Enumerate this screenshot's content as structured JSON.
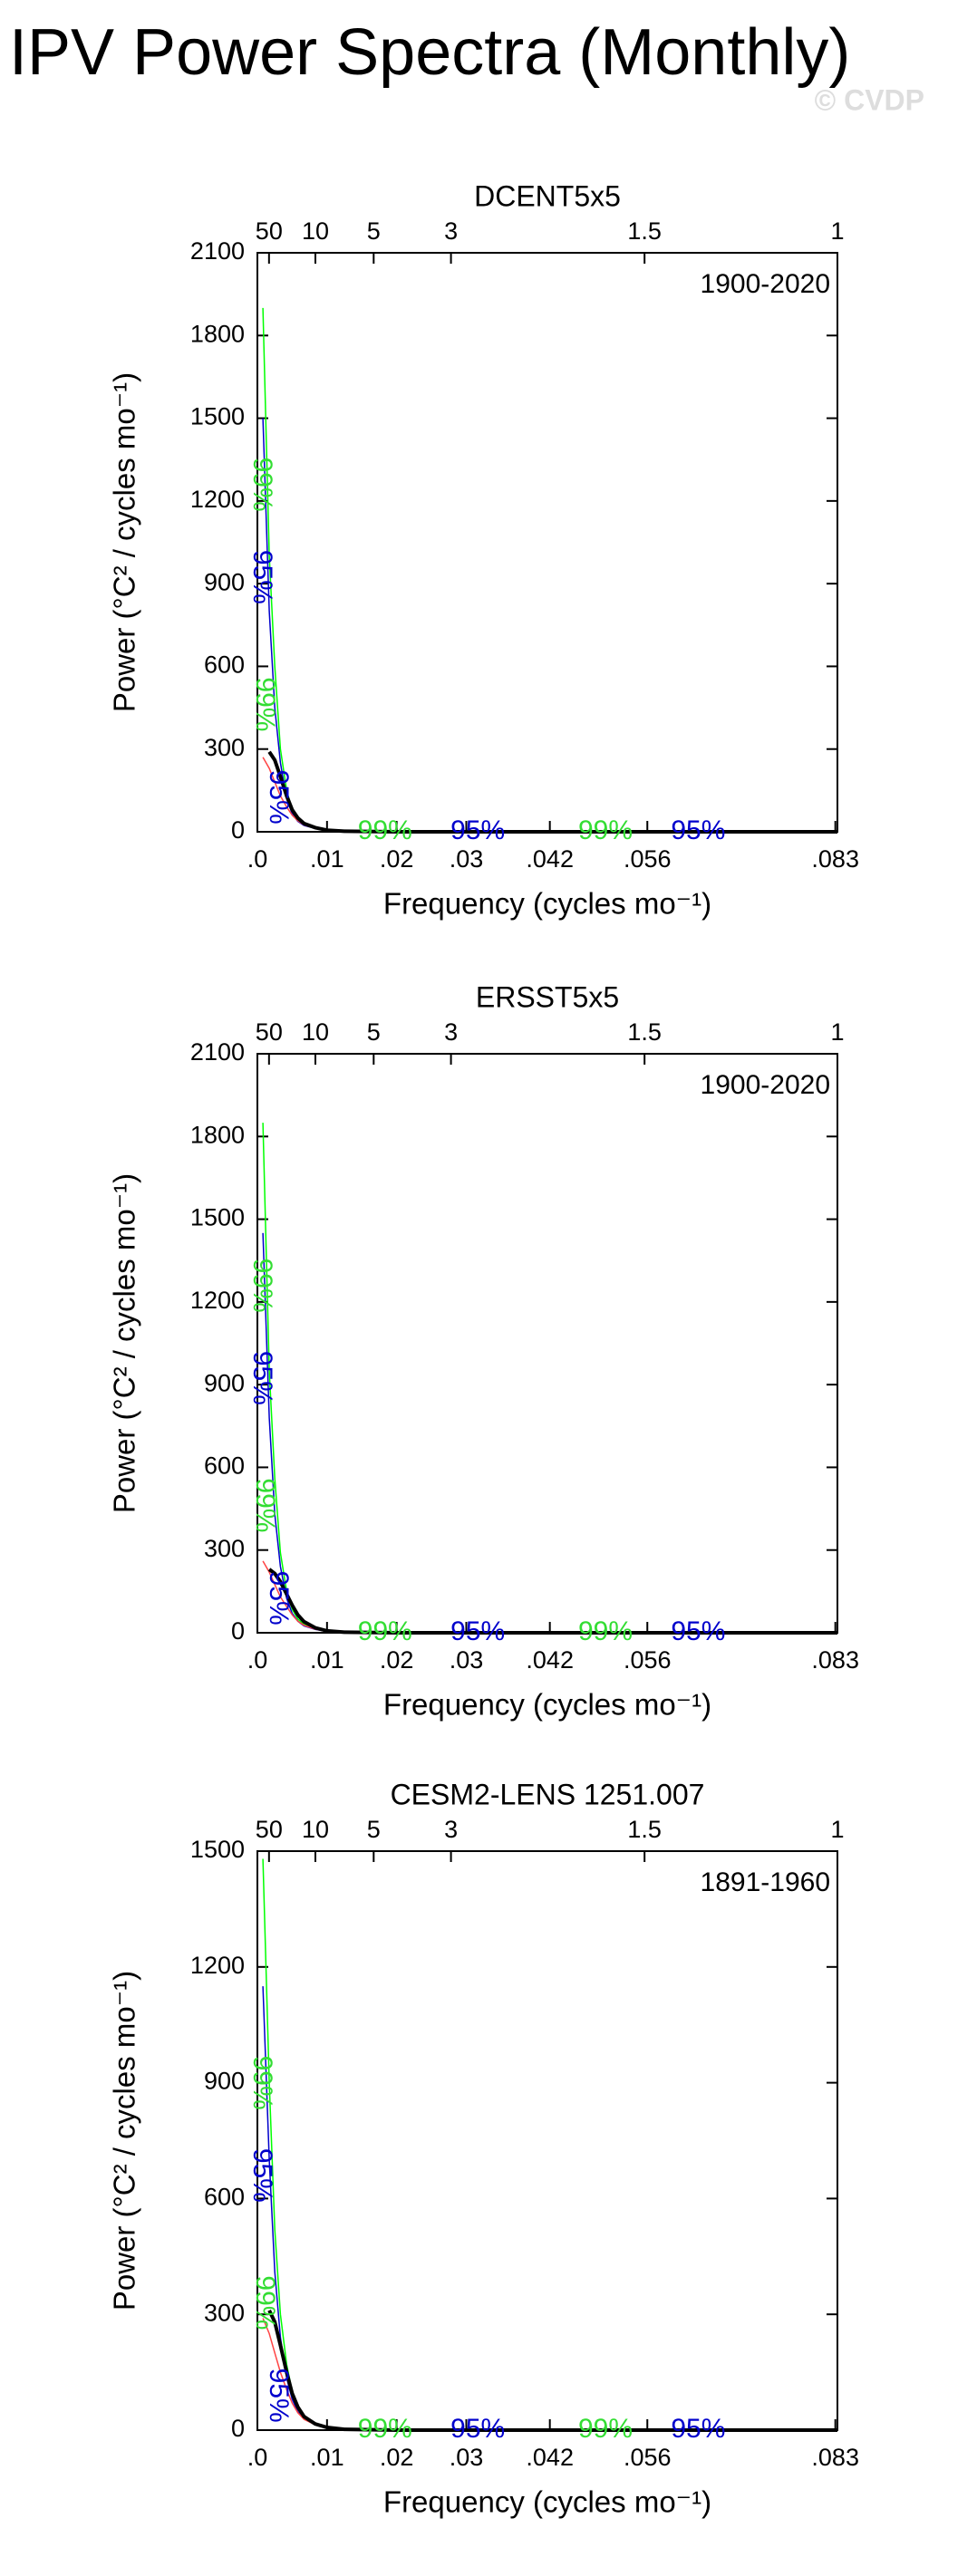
{
  "title": "IPV Power Spectra (Monthly)",
  "watermark": "© CVDP",
  "chart_data": [
    {
      "type": "line",
      "title": "DCENT5x5",
      "period": "1900-2020",
      "x_label": "Frequency (cycles mo⁻¹)",
      "y_label": "Power (°C² / cycles mo⁻¹)",
      "x": [
        0.0008,
        0.0017,
        0.0025,
        0.0033,
        0.0042,
        0.005,
        0.0058,
        0.0067,
        0.0083,
        0.01,
        0.0125,
        0.02,
        0.04,
        0.0833
      ],
      "series": [
        {
          "color": "#00ff00",
          "values": [
            1900,
            1000,
            600,
            300,
            150,
            80,
            45,
            28,
            14,
            6,
            2,
            0,
            0,
            0
          ]
        },
        {
          "color": "#0000cc",
          "values": [
            1500,
            800,
            450,
            250,
            120,
            65,
            38,
            23,
            12,
            5,
            2,
            0,
            0,
            0
          ]
        },
        {
          "color": "#ff4444",
          "values": [
            270,
            230,
            180,
            130,
            90,
            60,
            40,
            25,
            12,
            5,
            2,
            0,
            0,
            0
          ]
        },
        {
          "color": "#000000",
          "values": [
            null,
            290,
            260,
            200,
            130,
            80,
            50,
            30,
            15,
            6,
            2,
            0,
            0,
            0
          ]
        }
      ],
      "annotations": [
        {
          "text": "99%",
          "color": "#33dd33"
        },
        {
          "text": "95%",
          "color": "#0000cc"
        },
        {
          "text": "99%",
          "color": "#33dd33"
        },
        {
          "text": "95%",
          "color": "#0000cc"
        },
        {
          "text": "99%",
          "color": "#33dd33"
        },
        {
          "text": "95%",
          "color": "#0000cc"
        },
        {
          "text": "99%",
          "color": "#33dd33"
        },
        {
          "text": "95%",
          "color": "#0000cc"
        }
      ],
      "xlim": [
        0,
        0.0833
      ],
      "ylim": [
        0,
        2100
      ],
      "xticks": [
        {
          "value": 0,
          "label": ".0"
        },
        {
          "value": 0.01,
          "label": ".01"
        },
        {
          "value": 0.02,
          "label": ".02"
        },
        {
          "value": 0.03,
          "label": ".03"
        },
        {
          "value": 0.042,
          "label": ".042"
        },
        {
          "value": 0.056,
          "label": ".056"
        },
        {
          "value": 0.083,
          "label": ".083"
        }
      ],
      "x2ticks": [
        {
          "value": 0.00167,
          "label": "50"
        },
        {
          "value": 0.00833,
          "label": "10"
        },
        {
          "value": 0.0167,
          "label": "5"
        },
        {
          "value": 0.0278,
          "label": "3"
        },
        {
          "value": 0.0556,
          "label": "1.5"
        },
        {
          "value": 0.0833,
          "label": "1"
        }
      ],
      "yticks": [
        0,
        300,
        600,
        900,
        1200,
        1500,
        1800,
        2100
      ]
    },
    {
      "type": "line",
      "title": "ERSST5x5",
      "period": "1900-2020",
      "x_label": "Frequency (cycles mo⁻¹)",
      "y_label": "Power (°C² / cycles mo⁻¹)",
      "x": [
        0.0008,
        0.0017,
        0.0025,
        0.0033,
        0.0042,
        0.005,
        0.0058,
        0.0067,
        0.0083,
        0.01,
        0.0125,
        0.02,
        0.04,
        0.0833
      ],
      "series": [
        {
          "color": "#00ff00",
          "values": [
            1850,
            950,
            560,
            290,
            150,
            85,
            50,
            30,
            15,
            6,
            2,
            0,
            0,
            0
          ]
        },
        {
          "color": "#0000cc",
          "values": [
            1450,
            780,
            430,
            240,
            125,
            70,
            42,
            25,
            12,
            5,
            2,
            0,
            0,
            0
          ]
        },
        {
          "color": "#ff4444",
          "values": [
            260,
            220,
            175,
            130,
            95,
            65,
            42,
            27,
            13,
            5,
            2,
            0,
            0,
            0
          ]
        },
        {
          "color": "#000000",
          "values": [
            null,
            230,
            215,
            185,
            140,
            100,
            65,
            40,
            18,
            7,
            2,
            0,
            0,
            0
          ]
        }
      ],
      "annotations": [
        {
          "text": "99%",
          "color": "#33dd33"
        },
        {
          "text": "95%",
          "color": "#0000cc"
        },
        {
          "text": "99%",
          "color": "#33dd33"
        },
        {
          "text": "95%",
          "color": "#0000cc"
        },
        {
          "text": "99%",
          "color": "#33dd33"
        },
        {
          "text": "95%",
          "color": "#0000cc"
        },
        {
          "text": "99%",
          "color": "#33dd33"
        },
        {
          "text": "95%",
          "color": "#0000cc"
        }
      ],
      "xlim": [
        0,
        0.0833
      ],
      "ylim": [
        0,
        2100
      ],
      "xticks": [
        {
          "value": 0,
          "label": ".0"
        },
        {
          "value": 0.01,
          "label": ".01"
        },
        {
          "value": 0.02,
          "label": ".02"
        },
        {
          "value": 0.03,
          "label": ".03"
        },
        {
          "value": 0.042,
          "label": ".042"
        },
        {
          "value": 0.056,
          "label": ".056"
        },
        {
          "value": 0.083,
          "label": ".083"
        }
      ],
      "x2ticks": [
        {
          "value": 0.00167,
          "label": "50"
        },
        {
          "value": 0.00833,
          "label": "10"
        },
        {
          "value": 0.0167,
          "label": "5"
        },
        {
          "value": 0.0278,
          "label": "3"
        },
        {
          "value": 0.0556,
          "label": "1.5"
        },
        {
          "value": 0.0833,
          "label": "1"
        }
      ],
      "yticks": [
        0,
        300,
        600,
        900,
        1200,
        1500,
        1800,
        2100
      ]
    },
    {
      "type": "line",
      "title": "CESM2-LENS 1251.007",
      "period": "1891-1960",
      "x_label": "Frequency (cycles mo⁻¹)",
      "y_label": "Power (°C² / cycles mo⁻¹)",
      "x": [
        0.0008,
        0.0017,
        0.0025,
        0.0033,
        0.0042,
        0.005,
        0.0058,
        0.0067,
        0.0083,
        0.01,
        0.0125,
        0.02,
        0.04,
        0.0833
      ],
      "series": [
        {
          "color": "#00ff00",
          "values": [
            1480,
            900,
            520,
            300,
            170,
            100,
            60,
            36,
            18,
            8,
            3,
            0,
            0,
            0
          ]
        },
        {
          "color": "#0000cc",
          "values": [
            1150,
            700,
            410,
            240,
            135,
            80,
            48,
            29,
            15,
            6,
            2,
            0,
            0,
            0
          ]
        },
        {
          "color": "#ff4444",
          "values": [
            290,
            250,
            200,
            150,
            105,
            70,
            45,
            28,
            14,
            6,
            2,
            0,
            0,
            0
          ]
        },
        {
          "color": "#000000",
          "values": [
            null,
            310,
            280,
            220,
            150,
            95,
            60,
            35,
            16,
            7,
            2,
            0,
            0,
            0
          ]
        }
      ],
      "annotations": [
        {
          "text": "99%",
          "color": "#33dd33"
        },
        {
          "text": "95%",
          "color": "#0000cc"
        },
        {
          "text": "99%",
          "color": "#33dd33"
        },
        {
          "text": "95%",
          "color": "#0000cc"
        },
        {
          "text": "99%",
          "color": "#33dd33"
        },
        {
          "text": "95%",
          "color": "#0000cc"
        },
        {
          "text": "99%",
          "color": "#33dd33"
        },
        {
          "text": "95%",
          "color": "#0000cc"
        }
      ],
      "xlim": [
        0,
        0.0833
      ],
      "ylim": [
        0,
        1500
      ],
      "xticks": [
        {
          "value": 0,
          "label": ".0"
        },
        {
          "value": 0.01,
          "label": ".01"
        },
        {
          "value": 0.02,
          "label": ".02"
        },
        {
          "value": 0.03,
          "label": ".03"
        },
        {
          "value": 0.042,
          "label": ".042"
        },
        {
          "value": 0.056,
          "label": ".056"
        },
        {
          "value": 0.083,
          "label": ".083"
        }
      ],
      "x2ticks": [
        {
          "value": 0.00167,
          "label": "50"
        },
        {
          "value": 0.00833,
          "label": "10"
        },
        {
          "value": 0.0167,
          "label": "5"
        },
        {
          "value": 0.0278,
          "label": "3"
        },
        {
          "value": 0.0556,
          "label": "1.5"
        },
        {
          "value": 0.0833,
          "label": "1"
        }
      ],
      "yticks": [
        0,
        300,
        600,
        900,
        1200,
        1500
      ]
    }
  ]
}
